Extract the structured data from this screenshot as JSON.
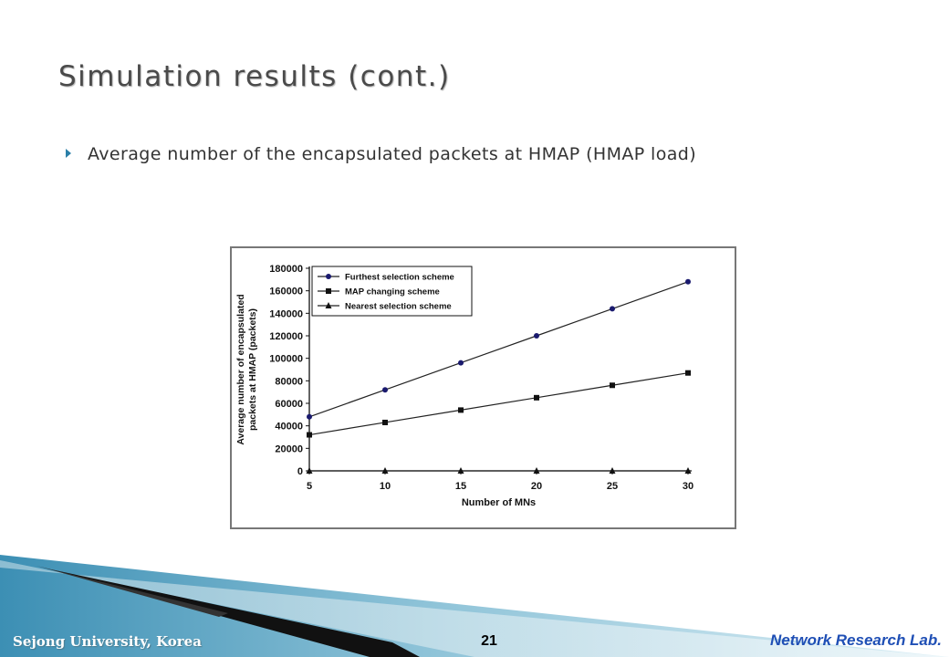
{
  "slide": {
    "title": "Simulation results (cont.)",
    "bullet": "Average number of the encapsulated packets at HMAP (HMAP load)"
  },
  "footer": {
    "left": "Sejong University, Korea",
    "page": "21",
    "right": "Network Research Lab."
  },
  "colors": {
    "accent": "#2b7fa8",
    "footer_blue": "#1f4fb5"
  },
  "chart_data": {
    "type": "line",
    "x": [
      5,
      10,
      15,
      20,
      25,
      30
    ],
    "xlabel": "Number of MNs",
    "ylabel": "Average number of encapsulated packets at HMAP (packets)",
    "ylabel_lines": [
      "Average number of encapsulated",
      "packets at HMAP (packets)"
    ],
    "xlim": [
      5,
      30
    ],
    "ylim": [
      0,
      180000
    ],
    "yticks": [
      0,
      20000,
      40000,
      60000,
      80000,
      100000,
      120000,
      140000,
      160000,
      180000
    ],
    "grid": false,
    "legend_position": "top-left",
    "series": [
      {
        "name": "Furthest selection scheme",
        "marker": "circle",
        "values": [
          48000,
          72000,
          96000,
          120000,
          144000,
          168000
        ]
      },
      {
        "name": "MAP changing scheme",
        "marker": "square",
        "values": [
          32000,
          43000,
          54000,
          65000,
          76000,
          87000
        ]
      },
      {
        "name": "Nearest selection scheme",
        "marker": "triangle",
        "values": [
          0,
          0,
          0,
          0,
          0,
          0
        ]
      }
    ]
  }
}
